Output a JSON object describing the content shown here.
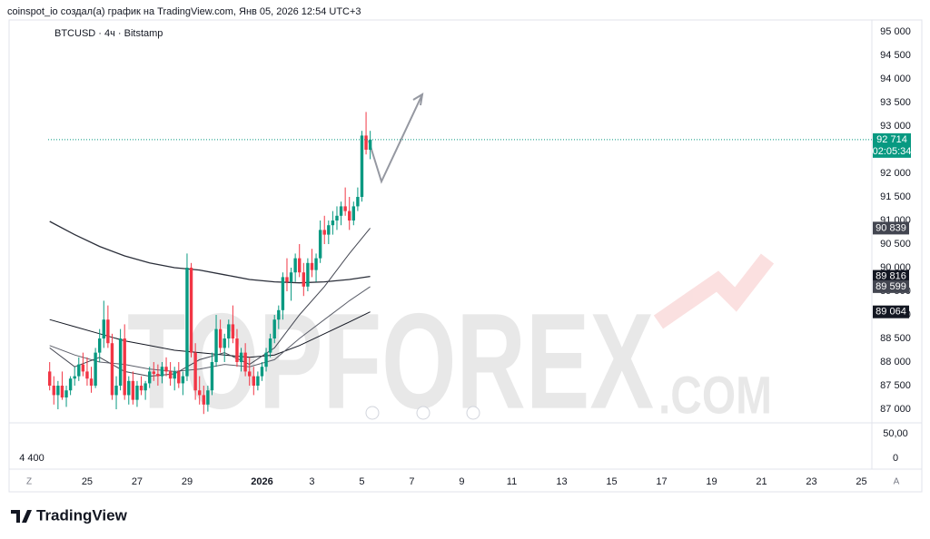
{
  "chart_data": {
    "type": "candlestick",
    "header": "coinspot_io создал(а) график на TradingView.com, Янв 05, 2026 12:54 UTC+3",
    "title": "BTCUSD · 4ч · Bitstamp",
    "watermark": "TOPFOREX",
    "watermark_sub": ".COM",
    "brand": "TradingView",
    "up_color": "#089981",
    "down_color": "#f23645",
    "x": [
      -36,
      -32,
      -28,
      -24,
      -20,
      -16,
      -12,
      -8,
      -4,
      0,
      4,
      8,
      12,
      16,
      20,
      24,
      28,
      32,
      36,
      40,
      44,
      48,
      52,
      56,
      60,
      64,
      68,
      72,
      76,
      80,
      84,
      88,
      92,
      96,
      100,
      104,
      108,
      112,
      116,
      120,
      124,
      128,
      132,
      136,
      140,
      144,
      148,
      152,
      156,
      160,
      164,
      168,
      172,
      176,
      180,
      184,
      188,
      192,
      196,
      200,
      204,
      208,
      212,
      216,
      220,
      224,
      228,
      232,
      236,
      240,
      244,
      248,
      252,
      256,
      260,
      264,
      268,
      272
    ],
    "open": [
      87800,
      87500,
      87300,
      87500,
      87250,
      87400,
      87650,
      87700,
      87950,
      87800,
      87650,
      87500,
      88200,
      88500,
      88900,
      88400,
      87300,
      87500,
      88500,
      87300,
      87600,
      87200,
      87500,
      87400,
      87550,
      87800,
      87750,
      87700,
      87900,
      87800,
      87650,
      87800,
      87550,
      87700,
      90000,
      88200,
      87400,
      87300,
      87100,
      87400,
      88000,
      88700,
      88300,
      88500,
      88800,
      88500,
      88000,
      88200,
      87800,
      87700,
      87500,
      87700,
      87900,
      88200,
      88500,
      88900,
      89100,
      89800,
      89700,
      89900,
      90200,
      89900,
      89600,
      90100,
      89950,
      90200,
      90800,
      90700,
      90900,
      91000,
      91100,
      91300,
      91200,
      91000,
      91300,
      91500,
      92800,
      92500
    ],
    "high": [
      88000,
      87700,
      87600,
      87800,
      87500,
      87700,
      87900,
      88100,
      88200,
      88100,
      87900,
      88300,
      88700,
      89300,
      89200,
      88600,
      87700,
      88700,
      88800,
      87700,
      87800,
      87600,
      87700,
      87600,
      87900,
      88000,
      87950,
      88000,
      88100,
      88000,
      87900,
      88000,
      87800,
      90300,
      90100,
      88400,
      87700,
      87500,
      87500,
      88200,
      89000,
      88900,
      88600,
      88900,
      89200,
      88700,
      88300,
      88400,
      88100,
      87900,
      87800,
      88000,
      88300,
      88600,
      89000,
      89200,
      89900,
      90200,
      90000,
      90300,
      90500,
      90100,
      90200,
      90400,
      90300,
      91000,
      91100,
      91000,
      91200,
      91300,
      91400,
      91700,
      91500,
      91400,
      91700,
      92900,
      93300,
      92900
    ],
    "low": [
      87400,
      87100,
      87000,
      87200,
      87050,
      87300,
      87500,
      87600,
      87700,
      87500,
      87350,
      87450,
      88000,
      88300,
      88300,
      87200,
      87000,
      87400,
      87200,
      87100,
      87100,
      87050,
      87300,
      87200,
      87450,
      87600,
      87500,
      87550,
      87700,
      87500,
      87400,
      87450,
      87300,
      87600,
      88100,
      87200,
      87100,
      86900,
      86950,
      87300,
      87900,
      88200,
      88000,
      88300,
      88400,
      87900,
      87800,
      87700,
      87500,
      87300,
      87400,
      87600,
      87800,
      88100,
      88400,
      88700,
      88900,
      89500,
      89300,
      89700,
      89800,
      89400,
      89500,
      89800,
      89700,
      90100,
      90500,
      90500,
      90700,
      90800,
      90900,
      91100,
      90800,
      90900,
      91200,
      91400,
      92400,
      92300
    ],
    "close": [
      87500,
      87300,
      87500,
      87250,
      87400,
      87650,
      87700,
      87950,
      87800,
      87650,
      87500,
      88200,
      88500,
      88900,
      88400,
      87300,
      87500,
      88500,
      87300,
      87600,
      87200,
      87500,
      87400,
      87550,
      87800,
      87750,
      87700,
      87900,
      87800,
      87650,
      87800,
      87550,
      87700,
      90000,
      88200,
      87400,
      87300,
      87100,
      87400,
      88000,
      88700,
      88300,
      88500,
      88800,
      88500,
      88000,
      88200,
      87800,
      87700,
      87500,
      87700,
      87900,
      88200,
      88500,
      88900,
      89100,
      89800,
      89700,
      89900,
      90200,
      89900,
      89600,
      90100,
      89950,
      90200,
      90800,
      90700,
      90900,
      91000,
      91100,
      91300,
      91200,
      91000,
      91300,
      91500,
      92800,
      92500,
      92714
    ],
    "series": [
      {
        "color": "#2a2e39",
        "x": [
          -36,
          -12,
          12,
          36,
          60,
          84,
          108,
          132,
          156,
          180,
          204,
          228,
          252,
          272
        ],
        "values": [
          90980,
          90700,
          90450,
          90250,
          90100,
          90000,
          89950,
          89850,
          89750,
          89700,
          89680,
          89700,
          89750,
          89816
        ]
      },
      {
        "color": "#131722",
        "x": [
          -36,
          -12,
          12,
          36,
          60,
          84,
          108,
          132,
          156,
          180,
          204,
          228,
          252,
          272
        ],
        "values": [
          88900,
          88750,
          88600,
          88450,
          88350,
          88250,
          88200,
          88150,
          88100,
          88150,
          88350,
          88600,
          88850,
          89064
        ]
      },
      {
        "color": "#5d606b",
        "x": [
          -36,
          -12,
          12,
          36,
          60,
          84,
          108,
          132,
          156,
          180,
          204,
          228,
          252,
          272
        ],
        "values": [
          88350,
          88150,
          88000,
          87950,
          87850,
          87800,
          87850,
          87950,
          87900,
          88050,
          88500,
          88900,
          89300,
          89599
        ]
      },
      {
        "color": "#434651",
        "x": [
          -36,
          -12,
          12,
          36,
          60,
          84,
          108,
          132,
          156,
          180,
          204,
          228,
          252,
          272
        ],
        "values": [
          88300,
          87900,
          88100,
          87800,
          87700,
          87750,
          88050,
          88200,
          87950,
          88300,
          89000,
          89600,
          90300,
          90839
        ]
      }
    ],
    "price_labels": [
      {
        "value": 90839,
        "label": "90 839",
        "color": "#434651"
      },
      {
        "value": 89816,
        "label": "89 816",
        "color": "#131722"
      },
      {
        "value": 89599,
        "label": "89 599",
        "color": "#434651"
      },
      {
        "value": 89064,
        "label": "89 064",
        "color": "#131722"
      }
    ],
    "current_price": {
      "value": 92714,
      "label": "92 714"
    },
    "countdown": "02:05:34",
    "xlim": [
      -75,
      754
    ],
    "xticks": [
      {
        "value": 0,
        "label": "25"
      },
      {
        "value": 48,
        "label": "27"
      },
      {
        "value": 96,
        "label": "29"
      },
      {
        "value": 168,
        "label": "2026"
      },
      {
        "value": 216,
        "label": "3"
      },
      {
        "value": 264,
        "label": "5"
      },
      {
        "value": 312,
        "label": "7"
      },
      {
        "value": 360,
        "label": "9"
      },
      {
        "value": 408,
        "label": "11"
      },
      {
        "value": 456,
        "label": "13"
      },
      {
        "value": 504,
        "label": "15"
      },
      {
        "value": 552,
        "label": "17"
      },
      {
        "value": 600,
        "label": "19"
      },
      {
        "value": 648,
        "label": "21"
      },
      {
        "value": 696,
        "label": "23"
      },
      {
        "value": 744,
        "label": "25"
      }
    ],
    "ylim": [
      86712,
      95192
    ],
    "yticks": [
      {
        "value": 95000,
        "label": "95 000"
      },
      {
        "value": 94500,
        "label": "94 500"
      },
      {
        "value": 94000,
        "label": "94 000"
      },
      {
        "value": 93500,
        "label": "93 500"
      },
      {
        "value": 93000,
        "label": "93 000"
      },
      {
        "value": 92500,
        "label": "92 500"
      },
      {
        "value": 92000,
        "label": "92 000"
      },
      {
        "value": 91500,
        "label": "91 500"
      },
      {
        "value": 91000,
        "label": "91 000"
      },
      {
        "value": 90500,
        "label": "90 500"
      },
      {
        "value": 90000,
        "label": "90 000"
      },
      {
        "value": 89500,
        "label": "89 500"
      },
      {
        "value": 89000,
        "label": "89 000"
      },
      {
        "value": 88500,
        "label": "88 500"
      },
      {
        "value": 88000,
        "label": "88 000"
      },
      {
        "value": 87500,
        "label": "87 500"
      },
      {
        "value": 87000,
        "label": "87 000"
      }
    ],
    "time_buttons": [
      "Z",
      "A"
    ],
    "indicator_pane": {
      "ylim": [
        -22,
        72
      ],
      "yticks": [
        {
          "value": 50,
          "label": "50,00"
        },
        0
      ],
      "left_label": "4 400"
    }
  }
}
